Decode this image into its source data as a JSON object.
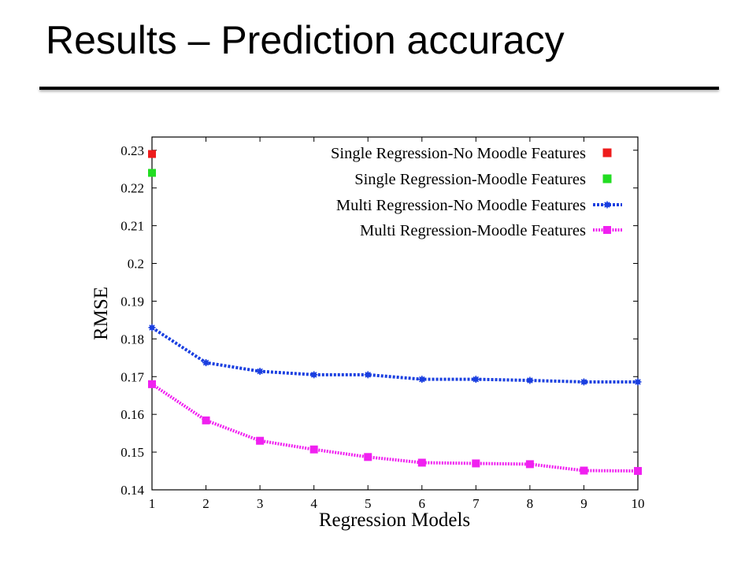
{
  "slide": {
    "title": "Results – Prediction accuracy"
  },
  "chart_data": {
    "type": "line",
    "xlabel": "Regression Models",
    "ylabel": "RMSE",
    "xlim": [
      1,
      10
    ],
    "ylim": [
      0.14,
      0.23
    ],
    "x_ticks": [
      "1",
      "2",
      "3",
      "4",
      "5",
      "6",
      "7",
      "8",
      "9",
      "10"
    ],
    "y_ticks": [
      "0.14",
      "0.15",
      "0.16",
      "0.17",
      "0.18",
      "0.19",
      "0.2",
      "0.21",
      "0.22",
      "0.23"
    ],
    "y_tick_values": [
      0.14,
      0.15,
      0.16,
      0.17,
      0.18,
      0.19,
      0.2,
      0.21,
      0.22,
      0.23
    ],
    "grid": false,
    "legend_position": "top-right",
    "series": [
      {
        "name": "Single Regression-No Moodle Features",
        "style": "point",
        "marker": "square",
        "color": "#ee1c1c",
        "x": [
          1
        ],
        "values": [
          0.229
        ]
      },
      {
        "name": "Single Regression-Moodle Features",
        "style": "point",
        "marker": "square",
        "color": "#22dd22",
        "x": [
          1
        ],
        "values": [
          0.224
        ]
      },
      {
        "name": "Multi Regression-No Moodle Features",
        "style": "line",
        "marker": "star",
        "color": "#1a3fe0",
        "x": [
          1,
          2,
          3,
          4,
          5,
          6,
          7,
          8,
          9,
          10
        ],
        "values": [
          0.183,
          0.1737,
          0.1714,
          0.1705,
          0.1705,
          0.1693,
          0.1693,
          0.169,
          0.1686,
          0.1686
        ]
      },
      {
        "name": "Multi Regression-Moodle Features",
        "style": "line",
        "marker": "square",
        "color": "#f020f0",
        "x": [
          1,
          2,
          3,
          4,
          5,
          6,
          7,
          8,
          9,
          10
        ],
        "values": [
          0.168,
          0.1584,
          0.153,
          0.1507,
          0.1487,
          0.1472,
          0.147,
          0.1468,
          0.1451,
          0.145
        ]
      }
    ]
  }
}
